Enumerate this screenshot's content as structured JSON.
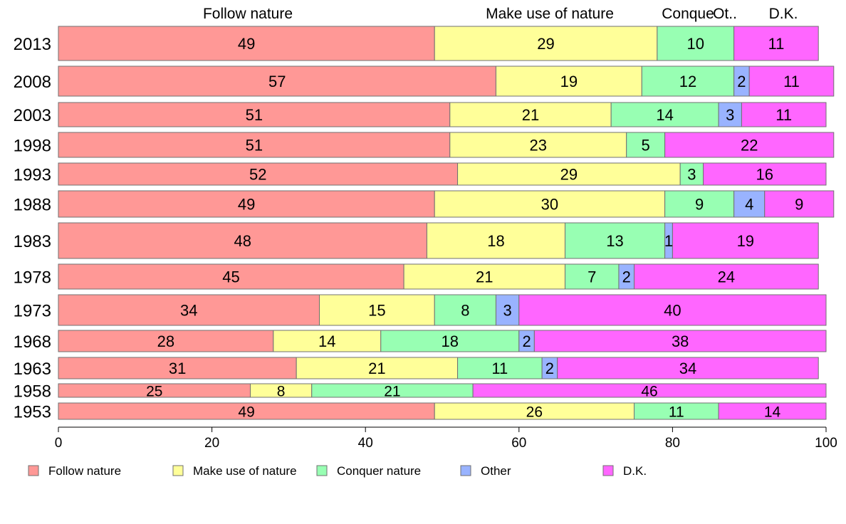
{
  "chart_data": {
    "type": "bar",
    "orientation": "horizontal",
    "stacked": true,
    "categories": [
      "2013",
      "2008",
      "2003",
      "1998",
      "1993",
      "1988",
      "1983",
      "1978",
      "1973",
      "1968",
      "1963",
      "1958",
      "1953"
    ],
    "series": [
      {
        "name": "Follow nature",
        "color": "#ff9896",
        "values": [
          49,
          57,
          51,
          51,
          52,
          49,
          48,
          45,
          34,
          28,
          31,
          25,
          49
        ]
      },
      {
        "name": "Make use of nature",
        "color": "#ffff99",
        "values": [
          29,
          19,
          21,
          23,
          29,
          30,
          18,
          21,
          15,
          14,
          21,
          8,
          26
        ]
      },
      {
        "name": "Conquer nature",
        "color": "#98ffb3",
        "values": [
          10,
          12,
          14,
          5,
          3,
          9,
          13,
          7,
          8,
          18,
          11,
          21,
          11
        ]
      },
      {
        "name": "Other",
        "color": "#99b3ff",
        "values": [
          null,
          2,
          3,
          null,
          null,
          4,
          1,
          2,
          3,
          2,
          2,
          null,
          null
        ]
      },
      {
        "name": "D.K.",
        "color": "#ff66ff",
        "values": [
          11,
          11,
          11,
          22,
          16,
          9,
          19,
          24,
          40,
          38,
          34,
          46,
          14
        ]
      }
    ],
    "bar_weights": [
      0.0,
      0.0,
      0.0,
      0.0,
      0.0,
      0.0,
      0.0,
      0.0,
      0.0,
      0.0,
      0.0,
      0.0,
      0.0
    ],
    "top_labels": [
      "Follow nature",
      "Make use of nature",
      "Conque",
      "Ot..",
      "D.K."
    ],
    "xlim": [
      0,
      100
    ],
    "xticks": [
      0,
      20,
      40,
      60,
      80,
      100
    ],
    "legend": {
      "position": "bottom",
      "labels": [
        "Follow nature",
        "Make use of nature",
        "Conquer nature",
        "Other",
        "D.K."
      ]
    },
    "grid": false,
    "title": "",
    "xlabel": "",
    "ylabel": ""
  }
}
